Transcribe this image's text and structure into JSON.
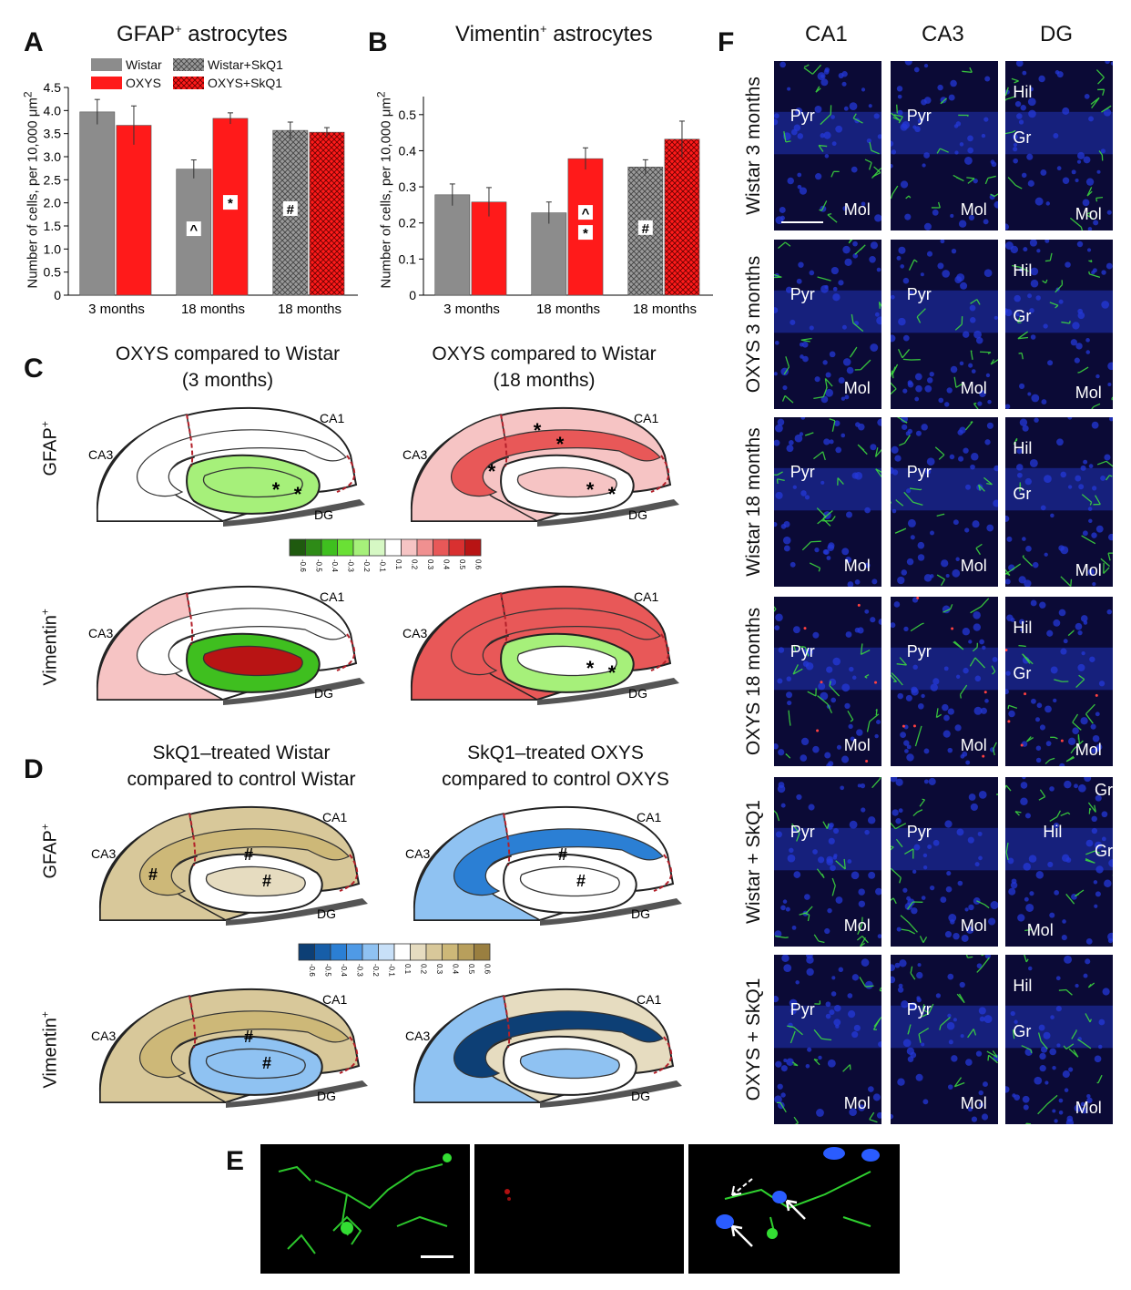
{
  "panelA": {
    "letter": "A",
    "title_main": "GFAP",
    "title_sup": "+",
    "title_rest": " astrocytes",
    "ylabel": "Number of cells, per 10,000 μm",
    "ylabel_sup": "2"
  },
  "panelB": {
    "letter": "B",
    "title_main": "Vimentin",
    "title_sup": "+",
    "title_rest": " astrocytes",
    "ylabel": "Number of cells, per 10,000 μm",
    "ylabel_sup": "2"
  },
  "legend": {
    "wistar": "Wistar",
    "oxys": "OXYS",
    "wistar_skq1": "Wistar+SkQ1",
    "oxys_skq1": "OXYS+SkQ1"
  },
  "colors": {
    "wistar": "#8c8c8c",
    "oxys": "#ff1a1a",
    "green_scale": [
      "#1f5a0f",
      "#2e8b17",
      "#3fbf1f",
      "#6ae035",
      "#a6f07a",
      "#d6f8c4",
      "#ffffff",
      "#f6c4c4",
      "#f09090",
      "#e85858",
      "#d93030",
      "#b81414"
    ],
    "brown_blue_scale": [
      "#0d3f75",
      "#175ea8",
      "#2b7fd4",
      "#4f9ae6",
      "#8fc2f2",
      "#c8e0f8",
      "#ffffff",
      "#e6dcc0",
      "#d8c89a",
      "#cdb878",
      "#b89f5c",
      "#9a7f40"
    ]
  },
  "chart_data": [
    {
      "type": "bar",
      "title": "GFAP+ astrocytes",
      "ylabel": "Number of cells, per 10,000 μm2",
      "ylim": [
        0,
        4.5
      ],
      "yticks": [
        "0",
        "0.5",
        "1.0",
        "1.5",
        "2.0",
        "2.5",
        "3.0",
        "3.5",
        "4.0",
        "4.5"
      ],
      "categories": [
        "3 months",
        "18 months",
        "18 months"
      ],
      "bars": [
        {
          "group": 0,
          "series": "Wistar",
          "value": 3.97,
          "err": 0.27,
          "pattern": "solid-gray",
          "mark": ""
        },
        {
          "group": 0,
          "series": "OXYS",
          "value": 3.68,
          "err": 0.42,
          "pattern": "solid-red",
          "mark": ""
        },
        {
          "group": 1,
          "series": "Wistar",
          "value": 2.73,
          "err": 0.2,
          "pattern": "solid-gray",
          "mark": "^"
        },
        {
          "group": 1,
          "series": "OXYS",
          "value": 3.83,
          "err": 0.12,
          "pattern": "solid-red",
          "mark": "*"
        },
        {
          "group": 2,
          "series": "Wistar+SkQ1",
          "value": 3.57,
          "err": 0.18,
          "pattern": "hatch-gray",
          "mark": "#"
        },
        {
          "group": 2,
          "series": "OXYS+SkQ1",
          "value": 3.53,
          "err": 0.1,
          "pattern": "hatch-red",
          "mark": ""
        }
      ]
    },
    {
      "type": "bar",
      "title": "Vimentin+ astrocytes",
      "ylabel": "Number of cells, per 10,000 μm2",
      "ylim": [
        0,
        0.55
      ],
      "yticks": [
        "0",
        "0.1",
        "0.2",
        "0.3",
        "0.4",
        "0.5"
      ],
      "categories": [
        "3 months",
        "18 months",
        "18 months"
      ],
      "bars": [
        {
          "group": 0,
          "series": "Wistar",
          "value": 0.278,
          "err": 0.03,
          "pattern": "solid-gray",
          "mark": ""
        },
        {
          "group": 0,
          "series": "OXYS",
          "value": 0.258,
          "err": 0.04,
          "pattern": "solid-red",
          "mark": ""
        },
        {
          "group": 1,
          "series": "Wistar",
          "value": 0.228,
          "err": 0.03,
          "pattern": "solid-gray",
          "mark": ""
        },
        {
          "group": 1,
          "series": "OXYS",
          "value": 0.378,
          "err": 0.03,
          "pattern": "solid-red",
          "mark": "*^"
        },
        {
          "group": 2,
          "series": "Wistar+SkQ1",
          "value": 0.355,
          "err": 0.02,
          "pattern": "hatch-gray",
          "mark": "#"
        },
        {
          "group": 2,
          "series": "OXYS+SkQ1",
          "value": 0.432,
          "err": 0.05,
          "pattern": "hatch-red",
          "mark": ""
        }
      ]
    }
  ],
  "panelC": {
    "letter": "C",
    "left_title_1": "OXYS compared to Wistar",
    "left_title_2": "(3 months)",
    "right_title_1": "OXYS compared to Wistar",
    "right_title_2": "(18 months)",
    "row1_label": "GFAP",
    "row2_label": "Vimentin",
    "sup": "+",
    "scale_ticks": [
      "-0.6",
      "-0.5",
      "-0.4",
      "-0.3",
      "-0.2",
      "-0.1",
      "0.1",
      "0.2",
      "0.3",
      "0.4",
      "0.5",
      "0.6"
    ],
    "maps": [
      {
        "ca3": "#ffffff",
        "ca1": "#ffffff",
        "dg_outer": "#a6f07a",
        "dg_inner": "#a6f07a",
        "marks": [
          "*",
          "*"
        ]
      },
      {
        "ca3": "#f6c4c4",
        "ca1": "#f6c4c4",
        "dg_outer": "#ffffff",
        "dg_inner": "#f6c4c4",
        "stripe": "#e85858",
        "marks": [
          "*",
          "*",
          "*",
          "*",
          "*"
        ]
      },
      {
        "ca3": "#f6c4c4",
        "ca1": "#ffffff",
        "dg_outer": "#3fbf1f",
        "dg_inner": "#b81414",
        "marks": []
      },
      {
        "ca3": "#e85858",
        "ca1": "#e85858",
        "dg_outer": "#a6f07a",
        "dg_inner": "#ffffff",
        "stripe": "#e85858",
        "marks": [
          "*",
          "*"
        ]
      }
    ]
  },
  "panelD": {
    "letter": "D",
    "left_title_1": "SkQ1–treated Wistar",
    "left_title_2": "compared to control Wistar",
    "right_title_1": "SkQ1–treated OXYS",
    "right_title_2": "compared to control OXYS",
    "row1_label": "GFAP",
    "row2_label": "Vimentin",
    "sup": "+",
    "scale_ticks": [
      "-0.6",
      "-0.5",
      "-0.4",
      "-0.3",
      "-0.2",
      "-0.1",
      "0.1",
      "0.2",
      "0.3",
      "0.4",
      "0.5",
      "0.6"
    ],
    "maps": [
      {
        "ca3": "#d8c89a",
        "ca1": "#d8c89a",
        "dg_outer": "#ffffff",
        "dg_inner": "#e6dcc0",
        "stripe": "#cdb878",
        "marks": [
          "#",
          "#",
          "#"
        ]
      },
      {
        "ca3": "#8fc2f2",
        "ca1": "#ffffff",
        "dg_outer": "#ffffff",
        "dg_inner": "#ffffff",
        "stripe": "#2b7fd4",
        "marks": [
          "#",
          "#"
        ]
      },
      {
        "ca3": "#d8c89a",
        "ca1": "#d8c89a",
        "dg_outer": "#8fc2f2",
        "dg_inner": "#8fc2f2",
        "stripe": "#cdb878",
        "marks": [
          "#",
          "#"
        ]
      },
      {
        "ca3": "#8fc2f2",
        "ca1": "#e6dcc0",
        "dg_outer": "#ffffff",
        "dg_inner": "#8fc2f2",
        "stripe": "#0d3f75",
        "marks": []
      }
    ]
  },
  "hippo_labels": {
    "ca1": "CA1",
    "ca3": "CA3",
    "dg": "DG"
  },
  "panelE": {
    "letter": "E"
  },
  "panelF": {
    "letter": "F",
    "cols": [
      "CA1",
      "CA3",
      "DG"
    ],
    "rows": [
      {
        "label": "Wistar 3 months",
        "cells": [
          [
            "Pyr",
            "Mol"
          ],
          [
            "Pyr",
            "Mol"
          ],
          [
            "Hil",
            "Gr",
            "Mol"
          ]
        ]
      },
      {
        "label": "OXYS 3 months",
        "cells": [
          [
            "Pyr",
            "Mol"
          ],
          [
            "Pyr",
            "Mol"
          ],
          [
            "Hil",
            "Gr",
            "Mol"
          ]
        ]
      },
      {
        "label": "Wistar 18 months",
        "cells": [
          [
            "Pyr",
            "Mol"
          ],
          [
            "Pyr",
            "Mol"
          ],
          [
            "Hil",
            "Gr",
            "Mol"
          ]
        ]
      },
      {
        "label": "OXYS 18 months",
        "cells": [
          [
            "Pyr",
            "Mol"
          ],
          [
            "Pyr",
            "Mol"
          ],
          [
            "Hil",
            "Gr",
            "Mol"
          ]
        ]
      },
      {
        "label": "Wistar + SkQ1",
        "cells": [
          [
            "Pyr",
            "Mol"
          ],
          [
            "Pyr",
            "Mol"
          ],
          [
            "Gr",
            "Hil",
            "Gr",
            "Mol"
          ]
        ]
      },
      {
        "label": "OXYS + SkQ1",
        "cells": [
          [
            "Pyr",
            "Mol"
          ],
          [
            "Pyr",
            "Mol"
          ],
          [
            "Hil",
            "Gr",
            "Mol"
          ]
        ]
      }
    ]
  }
}
